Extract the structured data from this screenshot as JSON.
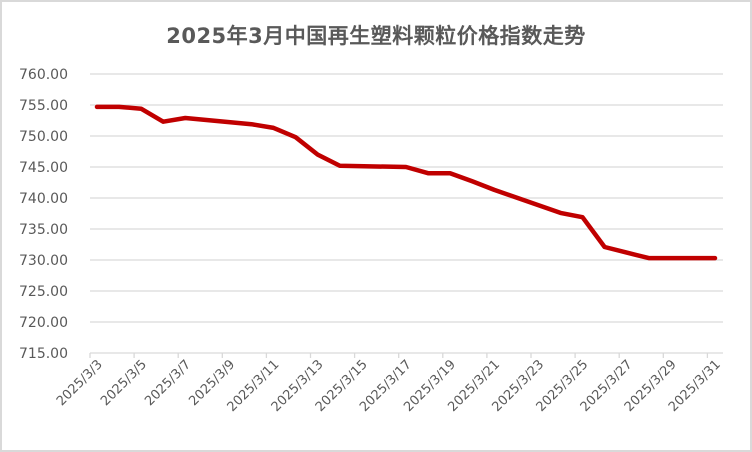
{
  "chart_data": {
    "type": "line",
    "title": "2025年3月中国再生塑料颗粒价格指数走势",
    "xlabel": "",
    "ylabel": "",
    "ylim": [
      715,
      760
    ],
    "yticks": [
      "760.00",
      "755.00",
      "750.00",
      "745.00",
      "740.00",
      "735.00",
      "730.00",
      "725.00",
      "720.00",
      "715.00"
    ],
    "xticks": [
      "2025/3/3",
      "2025/3/5",
      "2025/3/7",
      "2025/3/9",
      "2025/3/11",
      "2025/3/13",
      "2025/3/15",
      "2025/3/17",
      "2025/3/19",
      "2025/3/21",
      "2025/3/23",
      "2025/3/25",
      "2025/3/27",
      "2025/3/29",
      "2025/3/31"
    ],
    "grid": true,
    "legend": "none",
    "line_color": "#c00000",
    "series": [
      {
        "name": "中国再生塑料颗粒价格指数",
        "x": [
          "2025/3/3",
          "2025/3/4",
          "2025/3/5",
          "2025/3/6",
          "2025/3/7",
          "2025/3/10",
          "2025/3/11",
          "2025/3/12",
          "2025/3/13",
          "2025/3/14",
          "2025/3/17",
          "2025/3/18",
          "2025/3/19",
          "2025/3/20",
          "2025/3/21",
          "2025/3/24",
          "2025/3/25",
          "2025/3/26",
          "2025/3/27",
          "2025/3/28",
          "2025/3/31"
        ],
        "day": [
          3,
          4,
          5,
          6,
          7,
          10,
          11,
          12,
          13,
          14,
          17,
          18,
          19,
          20,
          21,
          24,
          25,
          26,
          27,
          28,
          31
        ],
        "values": [
          754.7,
          754.7,
          754.4,
          752.3,
          752.9,
          751.9,
          751.3,
          749.8,
          747.0,
          745.2,
          745.0,
          744.0,
          744.0,
          742.7,
          741.3,
          737.6,
          736.9,
          732.1,
          731.2,
          730.3,
          730.3
        ]
      }
    ]
  }
}
